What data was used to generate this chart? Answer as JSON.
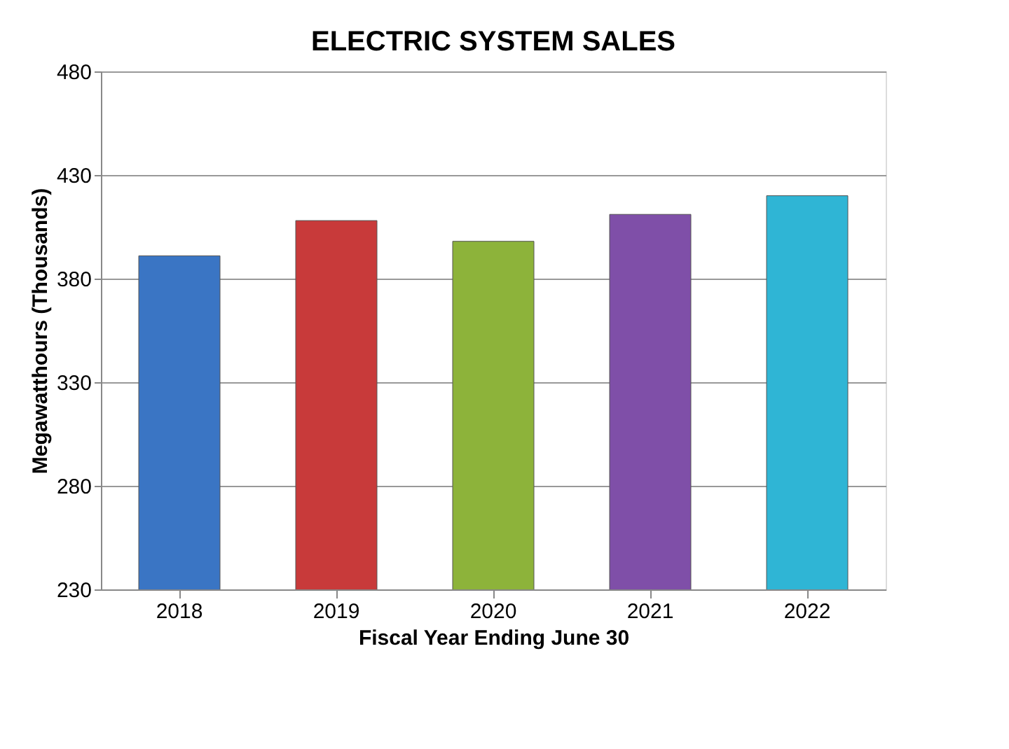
{
  "chart_data": {
    "type": "bar",
    "title": "ELECTRIC SYSTEM SALES",
    "xlabel": "Fiscal Year Ending June 30",
    "ylabel": "Megawatthours (Thousands)",
    "categories": [
      "2018",
      "2019",
      "2020",
      "2021",
      "2022"
    ],
    "values": [
      391,
      408,
      398,
      411,
      420
    ],
    "colors": [
      "#3a75c4",
      "#c83a3a",
      "#8db33a",
      "#7f4fa8",
      "#2fb5d5"
    ],
    "ylim": [
      230,
      480
    ],
    "yticks": [
      230,
      280,
      330,
      380,
      430,
      480
    ],
    "grid": "y"
  }
}
